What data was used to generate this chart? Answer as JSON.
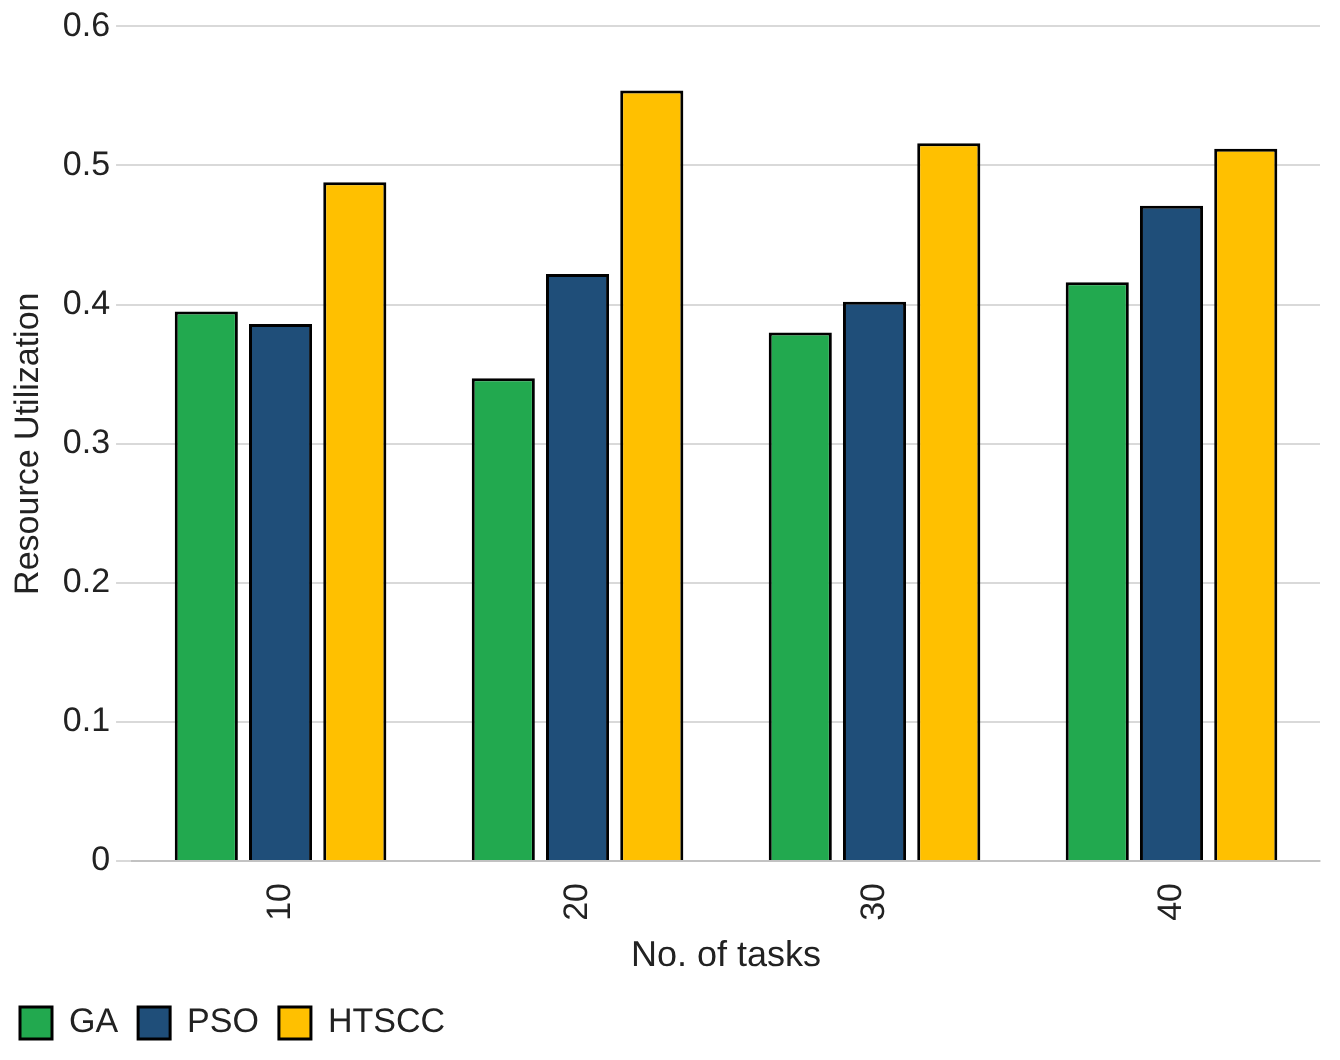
{
  "chart_data": {
    "type": "bar",
    "xlabel": "No. of tasks",
    "ylabel": "Resource Utilization",
    "categories": [
      "10",
      "20",
      "30",
      "40"
    ],
    "series": [
      {
        "name": "GA",
        "color": "#22a94f",
        "values": [
          0.395,
          0.347,
          0.38,
          0.416
        ]
      },
      {
        "name": "PSO",
        "color": "#1f4e79",
        "values": [
          0.386,
          0.422,
          0.402,
          0.471
        ]
      },
      {
        "name": "HTSCC",
        "color": "#ffc000",
        "values": [
          0.488,
          0.554,
          0.516,
          0.512
        ]
      }
    ],
    "ylim": [
      0,
      0.6
    ],
    "yticks": [
      0,
      0.1,
      0.2,
      0.3,
      0.4,
      0.5,
      0.6
    ],
    "grid": "y",
    "legend": "bottom left"
  }
}
